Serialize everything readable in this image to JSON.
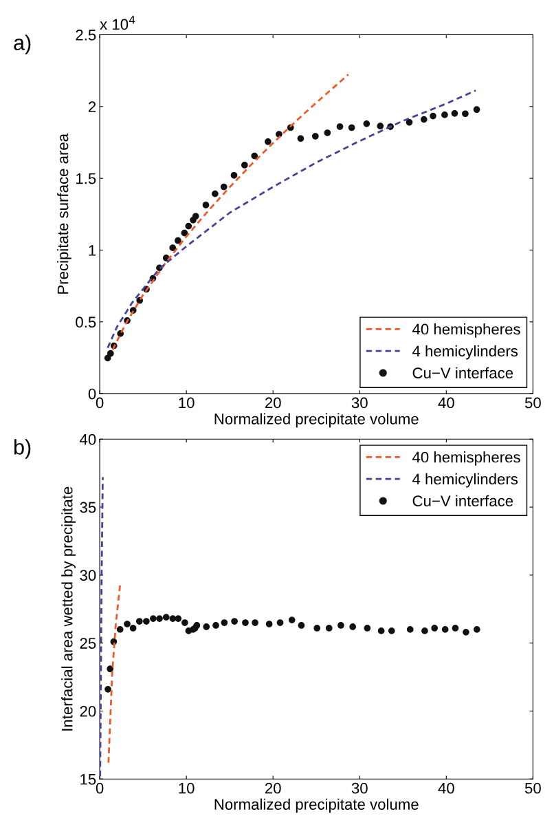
{
  "chart_data": [
    {
      "type": "line",
      "xlabel": "Normalized precipitate volume",
      "ylabel": "Precipitate surface area",
      "annotations": [
        "a)",
        "x 10$^{4}$"
      ],
      "xlim": [
        0,
        50
      ],
      "xticks": [
        0,
        10,
        20,
        30,
        40,
        50
      ],
      "ylim": [
        0,
        2.5
      ],
      "yticks": [
        0,
        0.5,
        1,
        1.5,
        2,
        2.5
      ],
      "grid": false,
      "legend": "bottom right",
      "series": [
        {
          "name": "40 hemispheres",
          "line_style": "dashed",
          "color": "#f05a28",
          "x": [
            1.5,
            3,
            5,
            7.5,
            10,
            12.5,
            15,
            17.5,
            20,
            22.5,
            25,
            28.7
          ],
          "values": [
            0.306,
            0.487,
            0.687,
            0.902,
            1.095,
            1.272,
            1.438,
            1.596,
            1.745,
            1.89,
            2.027,
            2.223
          ]
        },
        {
          "name": "4 hemicylinders",
          "line_style": "dashed",
          "color": "#4a3f9a",
          "x": [
            0.92,
            2,
            3.75,
            5.5,
            6.89,
            10,
            15,
            20,
            25,
            30,
            35,
            40,
            43.4
          ],
          "values": [
            0.319,
            0.466,
            0.634,
            0.766,
            0.87,
            1.026,
            1.26,
            1.44,
            1.61,
            1.76,
            1.9,
            2.02,
            2.112
          ]
        },
        {
          "name": "Cu−V interface",
          "type": "scatter",
          "marker": "circle",
          "color": "#111111",
          "x": [
            0.92,
            1.25,
            1.64,
            2.39,
            3.17,
            3.86,
            4.61,
            5.39,
            6.14,
            6.89,
            7.67,
            8.42,
            9.03,
            9.78,
            10.25,
            10.78,
            11.08,
            12.25,
            13.31,
            14.33,
            15.5,
            16.72,
            17.86,
            19.42,
            20.69,
            22.03,
            23.19,
            24.89,
            26.28,
            27.72,
            29.08,
            30.8,
            32.38,
            33.56,
            35.73,
            37.42,
            38.47,
            39.81,
            40.96,
            42.19,
            43.51
          ],
          "values": [
            0.248,
            0.28,
            0.333,
            0.418,
            0.509,
            0.58,
            0.649,
            0.727,
            0.803,
            0.876,
            0.945,
            1.016,
            1.066,
            1.119,
            1.167,
            1.209,
            1.236,
            1.314,
            1.392,
            1.44,
            1.521,
            1.592,
            1.656,
            1.755,
            1.807,
            1.853,
            1.777,
            1.793,
            1.817,
            1.86,
            1.853,
            1.88,
            1.864,
            1.86,
            1.89,
            1.91,
            1.934,
            1.942,
            1.952,
            1.95,
            1.979
          ]
        }
      ]
    },
    {
      "type": "line",
      "xlabel": "Normalized precipitate volume",
      "ylabel": "Interfacial area wetted by precipitate",
      "annotations": [
        "b)"
      ],
      "xlim": [
        0,
        50
      ],
      "xticks": [
        0,
        10,
        20,
        30,
        40,
        50
      ],
      "ylim": [
        15,
        40
      ],
      "yticks": [
        15,
        20,
        25,
        30,
        35,
        40
      ],
      "grid": false,
      "legend": "top right",
      "series": [
        {
          "name": "40 hemispheres",
          "line_style": "dashed",
          "color": "#f05a28",
          "x": [
            1.01,
            1.45,
            1.86,
            2.37
          ],
          "values": [
            16.2,
            22.9,
            26.4,
            29.4
          ]
        },
        {
          "name": "4 hemicylinders",
          "line_style": "dashed",
          "color": "#4a3f9a",
          "x": [
            0.05,
            0.13,
            0.22,
            0.35
          ],
          "values": [
            15.2,
            22,
            29.8,
            37.2
          ]
        },
        {
          "name": "Cu−V interface",
          "type": "scatter",
          "marker": "circle",
          "color": "#111111",
          "x": [
            0.95,
            1.2,
            1.61,
            2.35,
            3.17,
            3.85,
            4.58,
            5.38,
            6.17,
            6.9,
            7.67,
            8.43,
            9.06,
            9.82,
            10.26,
            10.78,
            11.0,
            11.21,
            12.31,
            13.4,
            14.38,
            15.55,
            16.81,
            17.93,
            19.56,
            20.82,
            22.18,
            23.27,
            25.08,
            26.47,
            27.83,
            29.2,
            30.88,
            32.49,
            33.69,
            35.83,
            37.51,
            38.64,
            39.87,
            41.04,
            42.27,
            43.53
          ],
          "values": [
            21.6,
            23.1,
            25.1,
            26.0,
            26.4,
            26.1,
            26.6,
            26.6,
            26.8,
            26.8,
            26.9,
            26.8,
            26.8,
            26.5,
            25.9,
            26.0,
            26.1,
            26.3,
            26.2,
            26.3,
            26.5,
            26.6,
            26.5,
            26.5,
            26.4,
            26.5,
            26.7,
            26.3,
            26.1,
            26.1,
            26.3,
            26.2,
            26.1,
            25.9,
            25.9,
            26.0,
            25.9,
            26.1,
            26.0,
            26.1,
            25.8,
            26.0
          ]
        }
      ]
    }
  ]
}
